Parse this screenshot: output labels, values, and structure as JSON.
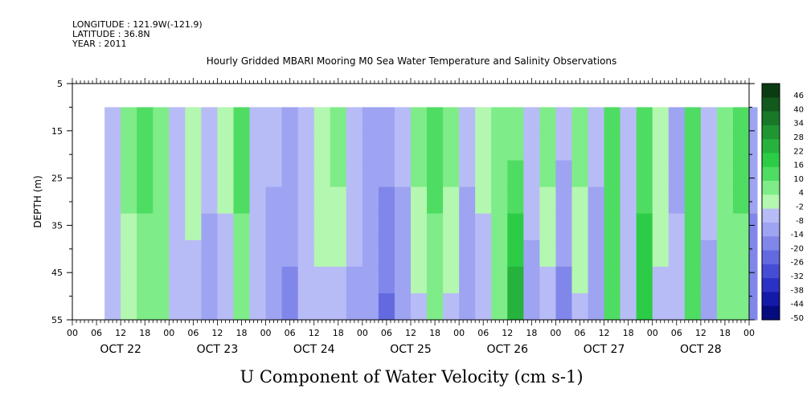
{
  "header": {
    "longitude": "LONGITUDE : 121.9W(-121.9)",
    "latitude": "LATITUDE : 36.8N",
    "year": "YEAR : 2011"
  },
  "chart_data": {
    "type": "heatmap",
    "title": "Hourly Gridded MBARI Mooring M0 Sea Water Temperature and Salinity Observations",
    "xlabel": "U Component of Water Velocity (cm s-1)",
    "ylabel": "DEPTH (m)",
    "ylim": [
      5,
      55
    ],
    "y_inverted": true,
    "y_ticks": [
      5,
      15,
      25,
      35,
      45,
      55
    ],
    "x_hour_labels": [
      "00",
      "06",
      "12",
      "18",
      "00",
      "06",
      "12",
      "18",
      "00",
      "06",
      "12",
      "18",
      "00",
      "06",
      "12",
      "18",
      "00",
      "06",
      "12",
      "18",
      "00",
      "06",
      "12",
      "18",
      "00",
      "06",
      "12",
      "18",
      "00"
    ],
    "x_day_labels": [
      "OCT 22",
      "OCT 23",
      "OCT 24",
      "OCT 25",
      "OCT 26",
      "OCT 27",
      "OCT 28"
    ],
    "data_extent": {
      "start_hour": 8,
      "end_hour": 170,
      "min_depth": 10,
      "max_depth": 55
    },
    "colorbar": {
      "levels": [
        "46",
        "40",
        "34",
        "28",
        "22",
        "16",
        "10",
        "4",
        "-2",
        "-8",
        "-14",
        "-20",
        "-26",
        "-32",
        "-38",
        "-44",
        "-50"
      ],
      "colors": [
        "#0b3b12",
        "#11591c",
        "#187828",
        "#1f9632",
        "#26b23d",
        "#2ccc47",
        "#4fdc63",
        "#7eec88",
        "#b4f7b0",
        "#b8bcf6",
        "#9ea4f1",
        "#8187ea",
        "#636ae0",
        "#454dd4",
        "#2a31c4",
        "#141aa8",
        "#070b80"
      ]
    },
    "u_column_profile": [
      {
        "h": 8,
        "top": -4,
        "bottom": -4
      },
      {
        "h": 12,
        "top": 10,
        "bottom": -2
      },
      {
        "h": 16,
        "top": 16,
        "bottom": 4
      },
      {
        "h": 20,
        "top": 4,
        "bottom": 10
      },
      {
        "h": 24,
        "top": -4,
        "bottom": -4
      },
      {
        "h": 28,
        "top": 4,
        "bottom": -6
      },
      {
        "h": 32,
        "top": -4,
        "bottom": -12
      },
      {
        "h": 36,
        "top": 4,
        "bottom": -8
      },
      {
        "h": 40,
        "top": 16,
        "bottom": 4
      },
      {
        "h": 44,
        "top": -2,
        "bottom": -6
      },
      {
        "h": 48,
        "top": -6,
        "bottom": -12
      },
      {
        "h": 52,
        "top": -8,
        "bottom": -16
      },
      {
        "h": 56,
        "top": -4,
        "bottom": -6
      },
      {
        "h": 60,
        "top": 4,
        "bottom": -4
      },
      {
        "h": 64,
        "top": 10,
        "bottom": -6
      },
      {
        "h": 68,
        "top": -2,
        "bottom": -10
      },
      {
        "h": 72,
        "top": -10,
        "bottom": -14
      },
      {
        "h": 76,
        "top": -8,
        "bottom": -22
      },
      {
        "h": 80,
        "top": -6,
        "bottom": -12
      },
      {
        "h": 84,
        "top": 10,
        "bottom": -4
      },
      {
        "h": 88,
        "top": 16,
        "bottom": 4
      },
      {
        "h": 92,
        "top": 10,
        "bottom": -4
      },
      {
        "h": 96,
        "top": -4,
        "bottom": -14
      },
      {
        "h": 100,
        "top": 4,
        "bottom": -8
      },
      {
        "h": 104,
        "top": 10,
        "bottom": 4
      },
      {
        "h": 108,
        "top": 4,
        "bottom": 28
      },
      {
        "h": 112,
        "top": -4,
        "bottom": -10
      },
      {
        "h": 116,
        "top": 10,
        "bottom": -6
      },
      {
        "h": 120,
        "top": -6,
        "bottom": -16
      },
      {
        "h": 124,
        "top": 10,
        "bottom": -4
      },
      {
        "h": 128,
        "top": -6,
        "bottom": -12
      },
      {
        "h": 132,
        "top": 16,
        "bottom": 10
      },
      {
        "h": 136,
        "top": -4,
        "bottom": -8
      },
      {
        "h": 140,
        "top": 10,
        "bottom": 22
      },
      {
        "h": 144,
        "top": 4,
        "bottom": -4
      },
      {
        "h": 148,
        "top": -10,
        "bottom": -6
      },
      {
        "h": 152,
        "top": 16,
        "bottom": 10
      },
      {
        "h": 156,
        "top": -4,
        "bottom": -10
      },
      {
        "h": 160,
        "top": 4,
        "bottom": 10
      },
      {
        "h": 164,
        "top": 16,
        "bottom": 4
      },
      {
        "h": 168,
        "top": -8,
        "bottom": -20
      },
      {
        "h": 170,
        "top": -4,
        "bottom": -10
      }
    ]
  }
}
